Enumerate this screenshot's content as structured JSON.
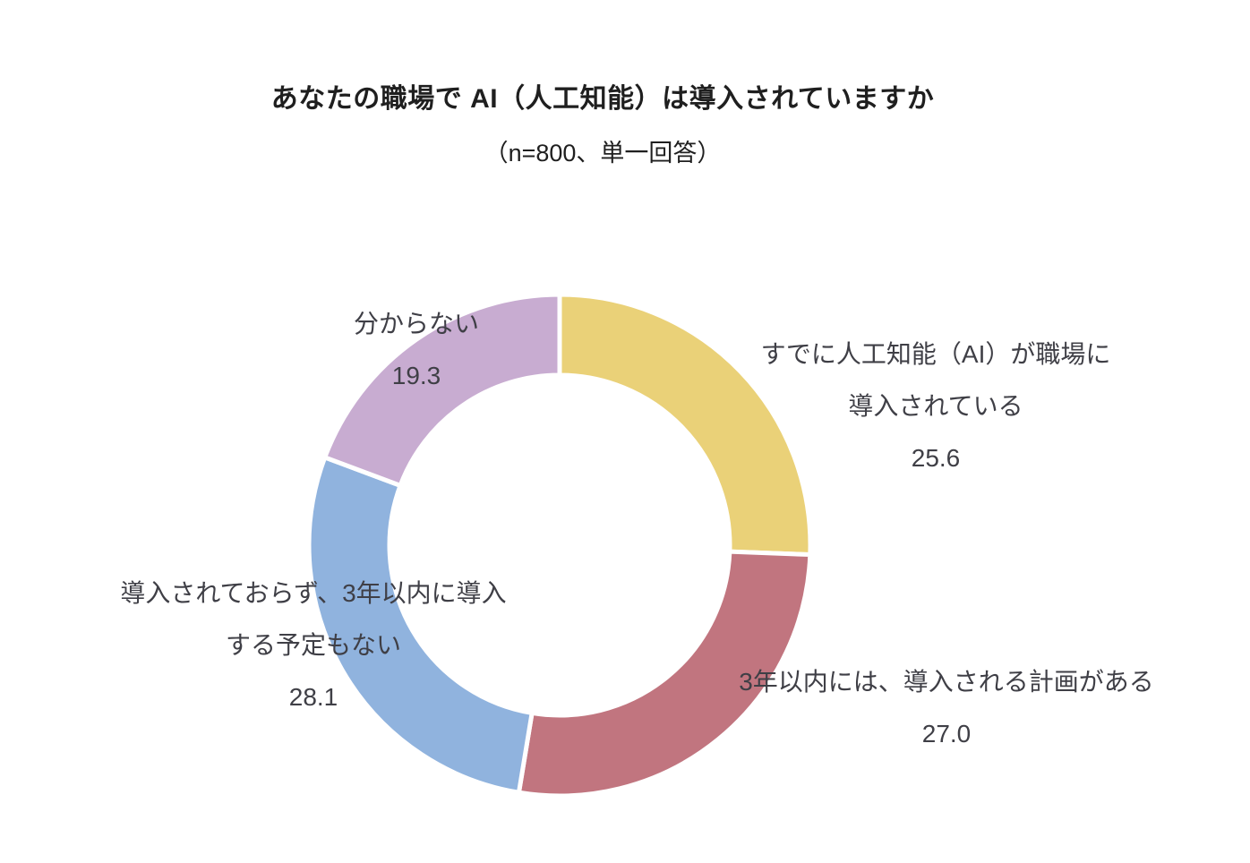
{
  "header": {
    "title": "あなたの職場で AI（人工知能）は導入されていますか",
    "subtitle": "（n=800、単一回答）"
  },
  "chart_data": {
    "type": "pie",
    "variant": "donut",
    "title": "あなたの職場で AI（人工知能）は導入されていますか",
    "subtitle": "（n=800、単一回答）",
    "sample_size": 800,
    "start_angle_deg": 0,
    "direction": "clockwise",
    "donut_hole_ratio": 0.68,
    "gap_color": "#ffffff",
    "label_color": "#3f3f46",
    "legend": "none",
    "segments": [
      {
        "label": "すでに人工知能（AI）が職場に導入されている",
        "label_lines": [
          "すでに人工知能（AI）が職場に",
          "導入されている"
        ],
        "value": 25.6,
        "value_label": "25.6",
        "color": "#EAD178"
      },
      {
        "label": "3年以内には、導入される計画がある",
        "label_lines": [
          "3年以内には、導入される計画がある"
        ],
        "value": 27.0,
        "value_label": "27.0",
        "color": "#C1757F"
      },
      {
        "label": "導入されておらず、3年以内に導入する予定もない",
        "label_lines": [
          "導入されておらず、3年以内に導入",
          "する予定もない"
        ],
        "value": 28.1,
        "value_label": "28.1",
        "color": "#90B3DE"
      },
      {
        "label": "分からない",
        "label_lines": [
          "分からない"
        ],
        "value": 19.3,
        "value_label": "19.3",
        "color": "#C8ACD1"
      }
    ]
  }
}
